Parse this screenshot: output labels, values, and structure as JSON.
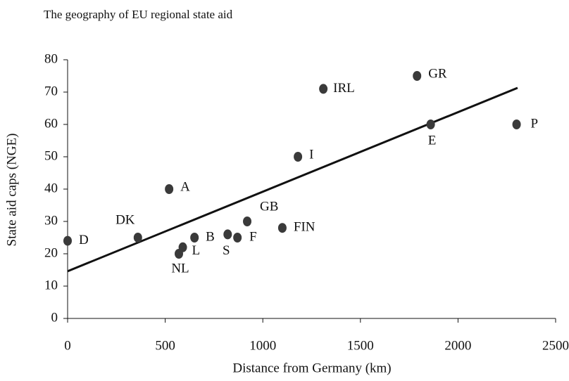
{
  "chart_data": {
    "type": "scatter",
    "title": "The geography of EU regional state aid",
    "x_label": "Distance from Germany (km)",
    "y_label": "State aid caps (NGE)",
    "labels": [
      "D",
      "DK",
      "A",
      "NL",
      "L",
      "B",
      "S",
      "F",
      "GB",
      "FIN",
      "I",
      "IRL",
      "GR",
      "E",
      "P"
    ],
    "x": [
      0,
      360,
      520,
      570,
      590,
      650,
      820,
      870,
      920,
      1100,
      1180,
      1310,
      1790,
      1860,
      2300
    ],
    "y": [
      24,
      25,
      40,
      20,
      22,
      25,
      26,
      25,
      30,
      28,
      50,
      71,
      75,
      60,
      60
    ],
    "color": "#3a3a3a",
    "trendline": {
      "x": [
        0,
        2305
      ],
      "y": [
        14.6,
        71.3
      ]
    },
    "xlim": [
      0,
      2500
    ],
    "xticks": [
      0,
      500,
      1000,
      1500,
      2000,
      2500
    ],
    "ylim": [
      0,
      80
    ],
    "yticks": [
      0,
      10,
      20,
      30,
      40,
      50,
      60,
      70,
      80
    ]
  }
}
